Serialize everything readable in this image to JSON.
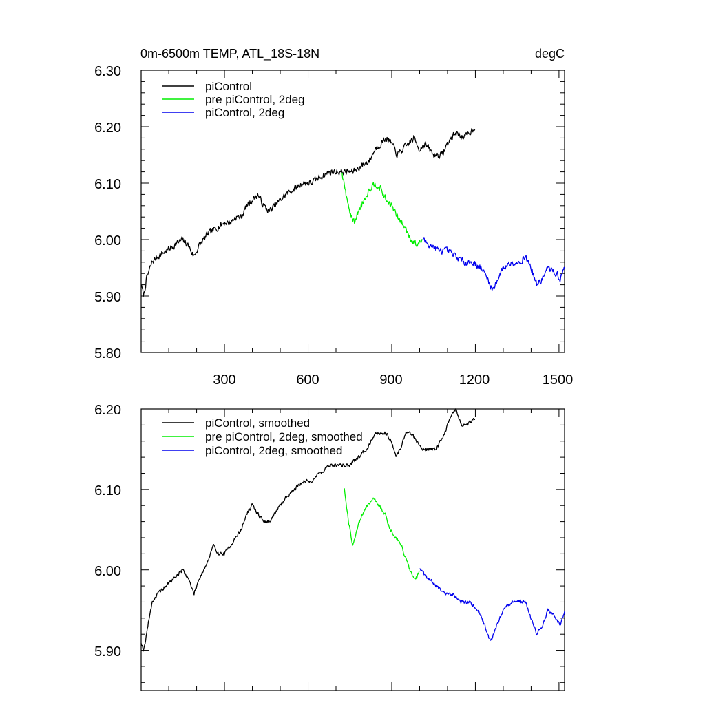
{
  "chart_data": [
    {
      "type": "line",
      "title_left": "0m-6500m TEMP, ATL_18S-18N",
      "title_right": "degC",
      "xlim": [
        1,
        1520
      ],
      "ylim": [
        5.8,
        6.3
      ],
      "x_ticks": [
        300,
        600,
        900,
        1200,
        1500
      ],
      "x_tick_labels": [
        "300",
        "600",
        "900",
        "1200",
        "1500"
      ],
      "y_ticks": [
        5.8,
        5.9,
        6.0,
        6.1,
        6.2,
        6.3
      ],
      "y_tick_labels": [
        "5.80",
        "5.90",
        "6.00",
        "6.10",
        "6.20",
        "6.30"
      ],
      "legend_position": "top-left",
      "series": [
        {
          "name": "piControl",
          "color": "#000000",
          "x_start": 1,
          "x_end": 1200,
          "points": [
            [
              1,
              5.92
            ],
            [
              10,
              5.9
            ],
            [
              20,
              5.93
            ],
            [
              40,
              5.96
            ],
            [
              60,
              5.97
            ],
            [
              90,
              5.98
            ],
            [
              120,
              5.99
            ],
            [
              150,
              6.0
            ],
            [
              170,
              5.99
            ],
            [
              190,
              5.97
            ],
            [
              210,
              5.99
            ],
            [
              240,
              6.01
            ],
            [
              270,
              6.02
            ],
            [
              300,
              6.03
            ],
            [
              320,
              6.03
            ],
            [
              340,
              6.04
            ],
            [
              360,
              6.04
            ],
            [
              380,
              6.06
            ],
            [
              400,
              6.07
            ],
            [
              420,
              6.08
            ],
            [
              440,
              6.06
            ],
            [
              460,
              6.05
            ],
            [
              480,
              6.06
            ],
            [
              500,
              6.07
            ],
            [
              520,
              6.08
            ],
            [
              550,
              6.09
            ],
            [
              580,
              6.1
            ],
            [
              610,
              6.1
            ],
            [
              640,
              6.11
            ],
            [
              680,
              6.12
            ],
            [
              720,
              6.12
            ],
            [
              740,
              6.12
            ],
            [
              760,
              6.12
            ],
            [
              790,
              6.13
            ],
            [
              820,
              6.14
            ],
            [
              840,
              6.16
            ],
            [
              860,
              6.17
            ],
            [
              880,
              6.18
            ],
            [
              900,
              6.17
            ],
            [
              920,
              6.15
            ],
            [
              940,
              6.16
            ],
            [
              960,
              6.17
            ],
            [
              980,
              6.18
            ],
            [
              1000,
              6.16
            ],
            [
              1020,
              6.17
            ],
            [
              1050,
              6.15
            ],
            [
              1080,
              6.15
            ],
            [
              1100,
              6.17
            ],
            [
              1130,
              6.19
            ],
            [
              1160,
              6.18
            ],
            [
              1200,
              6.2
            ]
          ],
          "noise": 0.006
        },
        {
          "name": "pre piControl, 2deg",
          "color": "#00ee00",
          "x_start": 720,
          "x_end": 1010,
          "points": [
            [
              720,
              6.12
            ],
            [
              740,
              6.07
            ],
            [
              755,
              6.04
            ],
            [
              765,
              6.03
            ],
            [
              780,
              6.05
            ],
            [
              800,
              6.07
            ],
            [
              820,
              6.09
            ],
            [
              840,
              6.1
            ],
            [
              860,
              6.09
            ],
            [
              880,
              6.07
            ],
            [
              900,
              6.06
            ],
            [
              920,
              6.04
            ],
            [
              950,
              6.02
            ],
            [
              970,
              6.0
            ],
            [
              990,
              5.99
            ],
            [
              1010,
              6.0
            ]
          ],
          "noise": 0.006
        },
        {
          "name": "piControl, 2deg",
          "color": "#0000ee",
          "x_start": 1010,
          "x_end": 1520,
          "points": [
            [
              1010,
              6.0
            ],
            [
              1040,
              5.99
            ],
            [
              1070,
              5.98
            ],
            [
              1100,
              5.98
            ],
            [
              1130,
              5.97
            ],
            [
              1160,
              5.96
            ],
            [
              1190,
              5.96
            ],
            [
              1220,
              5.95
            ],
            [
              1245,
              5.93
            ],
            [
              1260,
              5.91
            ],
            [
              1280,
              5.93
            ],
            [
              1300,
              5.95
            ],
            [
              1330,
              5.96
            ],
            [
              1360,
              5.96
            ],
            [
              1380,
              5.97
            ],
            [
              1400,
              5.95
            ],
            [
              1420,
              5.92
            ],
            [
              1440,
              5.93
            ],
            [
              1460,
              5.95
            ],
            [
              1490,
              5.94
            ],
            [
              1505,
              5.93
            ],
            [
              1520,
              5.95
            ]
          ],
          "noise": 0.006
        }
      ]
    },
    {
      "type": "line",
      "xlim": [
        1,
        1520
      ],
      "ylim": [
        5.85,
        6.2
      ],
      "x_ticks": [
        300,
        600,
        900,
        1200,
        1500
      ],
      "y_ticks": [
        5.9,
        6.0,
        6.1,
        6.2
      ],
      "y_tick_labels": [
        "5.90",
        "6.00",
        "6.10",
        "6.20"
      ],
      "legend_position": "top-left",
      "series": [
        {
          "name": "piControl, smoothed",
          "color": "#000000",
          "x_start": 1,
          "x_end": 1200,
          "points": [
            [
              1,
              5.91
            ],
            [
              10,
              5.9
            ],
            [
              20,
              5.92
            ],
            [
              40,
              5.96
            ],
            [
              60,
              5.97
            ],
            [
              90,
              5.98
            ],
            [
              120,
              5.99
            ],
            [
              150,
              6.0
            ],
            [
              170,
              5.99
            ],
            [
              190,
              5.97
            ],
            [
              210,
              5.99
            ],
            [
              240,
              6.01
            ],
            [
              260,
              6.03
            ],
            [
              280,
              6.02
            ],
            [
              300,
              6.02
            ],
            [
              320,
              6.03
            ],
            [
              340,
              6.04
            ],
            [
              360,
              6.05
            ],
            [
              380,
              6.07
            ],
            [
              400,
              6.08
            ],
            [
              420,
              6.07
            ],
            [
              440,
              6.06
            ],
            [
              460,
              6.06
            ],
            [
              480,
              6.07
            ],
            [
              500,
              6.08
            ],
            [
              520,
              6.09
            ],
            [
              550,
              6.1
            ],
            [
              580,
              6.11
            ],
            [
              610,
              6.11
            ],
            [
              640,
              6.12
            ],
            [
              680,
              6.13
            ],
            [
              720,
              6.13
            ],
            [
              750,
              6.13
            ],
            [
              780,
              6.14
            ],
            [
              810,
              6.15
            ],
            [
              840,
              6.17
            ],
            [
              860,
              6.17
            ],
            [
              880,
              6.17
            ],
            [
              900,
              6.16
            ],
            [
              915,
              6.14
            ],
            [
              930,
              6.15
            ],
            [
              950,
              6.17
            ],
            [
              970,
              6.17
            ],
            [
              990,
              6.16
            ],
            [
              1010,
              6.15
            ],
            [
              1040,
              6.15
            ],
            [
              1060,
              6.15
            ],
            [
              1090,
              6.17
            ],
            [
              1110,
              6.19
            ],
            [
              1130,
              6.2
            ],
            [
              1150,
              6.18
            ],
            [
              1170,
              6.18
            ],
            [
              1200,
              6.19
            ]
          ],
          "noise": 0.0025
        },
        {
          "name": "pre piControl, 2deg, smoothed",
          "color": "#00ee00",
          "x_start": 730,
          "x_end": 1000,
          "points": [
            [
              730,
              6.1
            ],
            [
              745,
              6.06
            ],
            [
              760,
              6.03
            ],
            [
              775,
              6.05
            ],
            [
              795,
              6.07
            ],
            [
              815,
              6.08
            ],
            [
              835,
              6.09
            ],
            [
              855,
              6.08
            ],
            [
              875,
              6.07
            ],
            [
              895,
              6.05
            ],
            [
              915,
              6.04
            ],
            [
              935,
              6.03
            ],
            [
              955,
              6.01
            ],
            [
              975,
              5.99
            ],
            [
              990,
              5.99
            ],
            [
              1000,
              6.0
            ]
          ],
          "noise": 0.0025
        },
        {
          "name": "piControl, 2deg, smoothed",
          "color": "#0000ee",
          "x_start": 1000,
          "x_end": 1520,
          "points": [
            [
              1000,
              6.0
            ],
            [
              1030,
              5.99
            ],
            [
              1060,
              5.98
            ],
            [
              1090,
              5.97
            ],
            [
              1120,
              5.97
            ],
            [
              1150,
              5.96
            ],
            [
              1180,
              5.96
            ],
            [
              1210,
              5.95
            ],
            [
              1235,
              5.93
            ],
            [
              1255,
              5.91
            ],
            [
              1275,
              5.93
            ],
            [
              1300,
              5.95
            ],
            [
              1330,
              5.96
            ],
            [
              1360,
              5.96
            ],
            [
              1380,
              5.96
            ],
            [
              1400,
              5.94
            ],
            [
              1420,
              5.92
            ],
            [
              1440,
              5.93
            ],
            [
              1460,
              5.95
            ],
            [
              1490,
              5.94
            ],
            [
              1505,
              5.93
            ],
            [
              1520,
              5.95
            ]
          ],
          "noise": 0.0025
        }
      ]
    }
  ]
}
